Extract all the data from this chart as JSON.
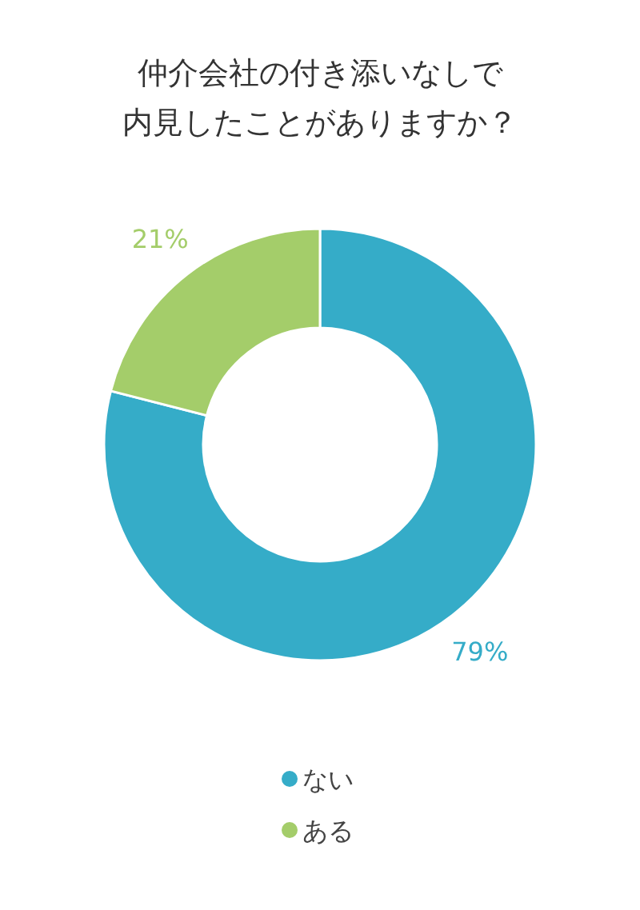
{
  "chart_data": {
    "type": "donut",
    "title": "仲介会社の付き添いなしで内見したことがありますか？",
    "categories": [
      "ない",
      "ある"
    ],
    "values": [
      79,
      21
    ],
    "colors": [
      "#35acc8",
      "#a4cd6a"
    ],
    "value_labels": [
      "79%",
      "21%"
    ],
    "legend": "bottom"
  }
}
